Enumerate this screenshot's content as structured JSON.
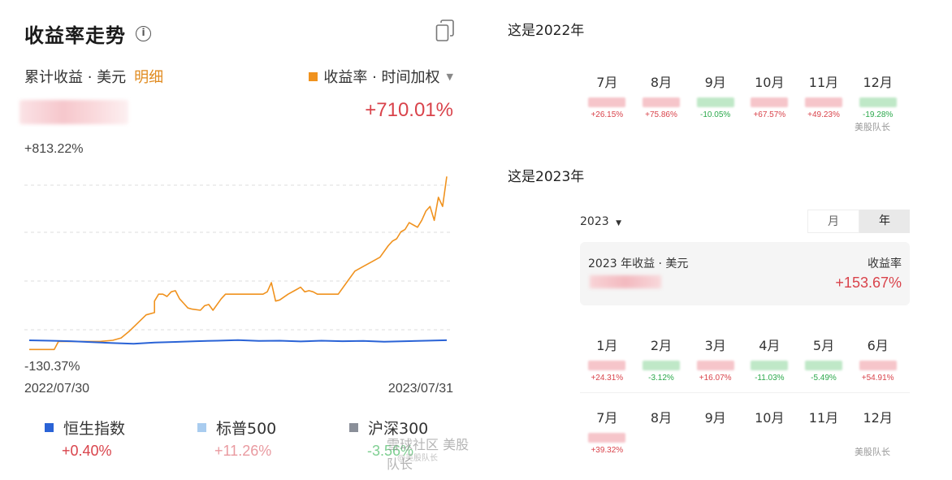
{
  "left": {
    "title": "收益率走势",
    "info_icon": "i",
    "sub_label": "累计收益 · 美元",
    "detail_link": "明细",
    "metric_selector": "收益率 · 时间加权",
    "total_return": "+710.01%",
    "y_max_label": "+813.22%",
    "y_min_label": "-130.37%",
    "x_start_label": "2022/07/30",
    "x_end_label": "2023/07/31",
    "legend": [
      {
        "name": "恒生指数",
        "value": "+0.40%",
        "color": "#2a63d6",
        "value_color": "#d9434b"
      },
      {
        "name": "标普500",
        "value": "+11.26%",
        "color": "#a9ccef",
        "value_color": "#e99aa0"
      },
      {
        "name": "沪深300",
        "value": "-3.56%",
        "color": "#8a8f99",
        "value_color": "#7fcf92"
      }
    ],
    "watermark": "美股队长",
    "watermark2": "雪球社区",
    "watermark_sub": "@美股队长"
  },
  "chart_data": {
    "type": "line",
    "title": "收益率走势",
    "x_range": [
      "2022/07/30",
      "2023/07/31"
    ],
    "ylim": [
      -130.37,
      813.22
    ],
    "grid": true,
    "series": [
      {
        "name": "收益率 · 时间加权",
        "color": "#f0921e",
        "x": [
          0,
          0.06,
          0.07,
          0.1,
          0.16,
          0.17,
          0.2,
          0.22,
          0.24,
          0.26,
          0.28,
          0.3,
          0.3,
          0.31,
          0.32,
          0.33,
          0.34,
          0.35,
          0.36,
          0.37,
          0.38,
          0.39,
          0.41,
          0.42,
          0.43,
          0.44,
          0.46,
          0.47,
          0.48,
          0.5,
          0.52,
          0.54,
          0.56,
          0.57,
          0.58,
          0.59,
          0.6,
          0.62,
          0.64,
          0.65,
          0.66,
          0.67,
          0.68,
          0.69,
          0.7,
          0.72,
          0.74,
          0.76,
          0.78,
          0.8,
          0.82,
          0.84,
          0.86,
          0.87,
          0.88,
          0.89,
          0.9,
          0.91,
          0.92,
          0.93,
          0.94,
          0.95,
          0.96,
          0.97,
          0.98,
          0.99,
          1.0
        ],
        "values": [
          -40,
          -40,
          -5,
          -5,
          -5,
          -5,
          0,
          10,
          40,
          75,
          110,
          120,
          170,
          200,
          200,
          190,
          210,
          215,
          180,
          160,
          140,
          135,
          130,
          150,
          155,
          130,
          180,
          200,
          200,
          200,
          200,
          200,
          200,
          210,
          250,
          170,
          175,
          200,
          220,
          230,
          210,
          215,
          210,
          200,
          200,
          200,
          200,
          250,
          300,
          320,
          340,
          360,
          410,
          430,
          440,
          470,
          480,
          510,
          500,
          490,
          520,
          560,
          580,
          520,
          620,
          580,
          710
        ]
      },
      {
        "name": "恒生指数",
        "color": "#2a63d6",
        "x": [
          0,
          0.05,
          0.1,
          0.15,
          0.2,
          0.25,
          0.3,
          0.35,
          0.4,
          0.45,
          0.5,
          0.55,
          0.6,
          0.65,
          0.7,
          0.75,
          0.8,
          0.85,
          0.9,
          0.95,
          1.0
        ],
        "values": [
          0,
          -2,
          -4,
          -8,
          -12,
          -15,
          -10,
          -7,
          -4,
          -2,
          1,
          -3,
          -2,
          -5,
          -2,
          -4,
          -3,
          -6,
          -4,
          -2,
          0.4
        ]
      }
    ]
  },
  "right": {
    "section_2022_title": "这是2022年",
    "section_2023_title": "这是2023年",
    "months_2022": [
      {
        "label": "7月",
        "value": "+26.15%",
        "sign": "pos"
      },
      {
        "label": "8月",
        "value": "+75.86%",
        "sign": "pos"
      },
      {
        "label": "9月",
        "value": "-10.05%",
        "sign": "neg"
      },
      {
        "label": "10月",
        "value": "+67.57%",
        "sign": "pos"
      },
      {
        "label": "11月",
        "value": "+49.23%",
        "sign": "pos"
      },
      {
        "label": "12月",
        "value": "-19.28%",
        "sign": "neg"
      }
    ],
    "year_selector": "2023",
    "seg_month": "月",
    "seg_year": "年",
    "card_label": "2023 年收益 · 美元",
    "card_right_label": "收益率",
    "card_value": "+153.67%",
    "months_2023_a": [
      {
        "label": "1月",
        "value": "+24.31%",
        "sign": "pos"
      },
      {
        "label": "2月",
        "value": "-3.12%",
        "sign": "neg"
      },
      {
        "label": "3月",
        "value": "+16.07%",
        "sign": "pos"
      },
      {
        "label": "4月",
        "value": "-11.03%",
        "sign": "neg"
      },
      {
        "label": "5月",
        "value": "-5.49%",
        "sign": "neg"
      },
      {
        "label": "6月",
        "value": "+54.91%",
        "sign": "pos"
      }
    ],
    "months_2023_b": [
      {
        "label": "7月",
        "value": "+39.32%",
        "sign": "pos"
      },
      {
        "label": "8月",
        "value": "",
        "sign": ""
      },
      {
        "label": "9月",
        "value": "",
        "sign": ""
      },
      {
        "label": "10月",
        "value": "",
        "sign": ""
      },
      {
        "label": "11月",
        "value": "",
        "sign": ""
      },
      {
        "label": "12月",
        "value": "",
        "sign": ""
      }
    ],
    "watermark": "美股队长"
  }
}
